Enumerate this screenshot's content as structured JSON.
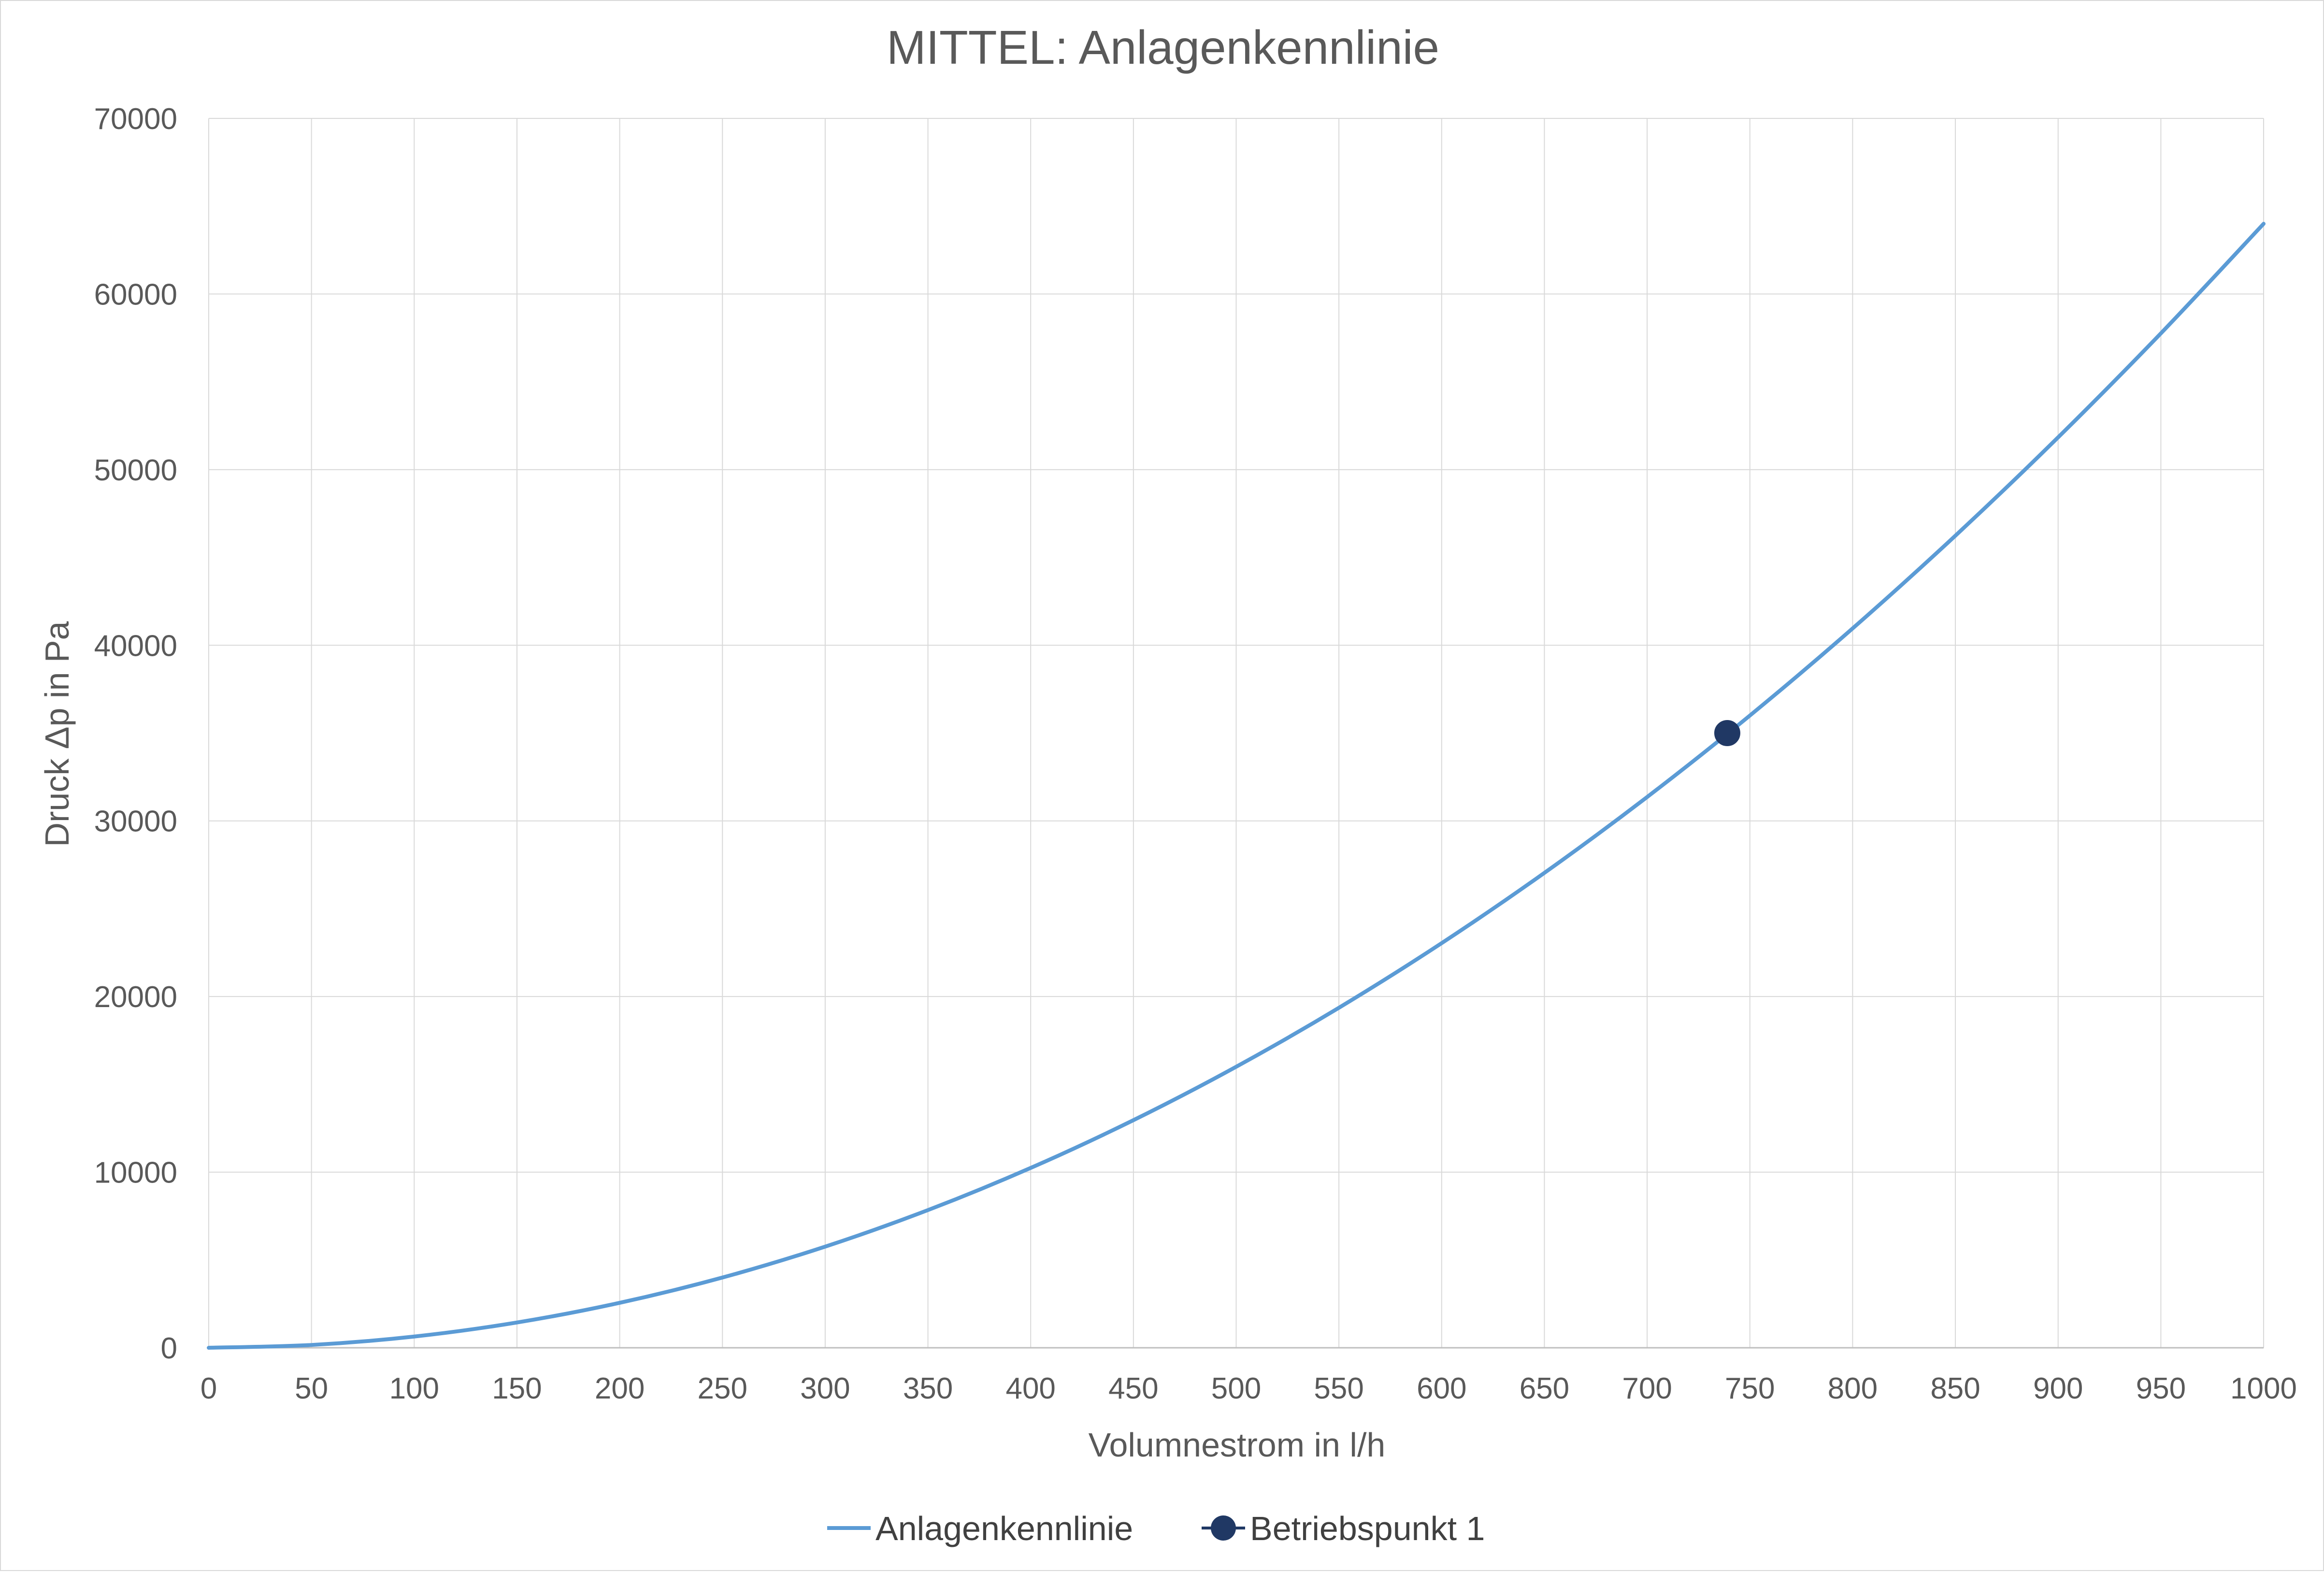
{
  "chart_data": {
    "type": "line",
    "title": "MITTEL: Anlagenkennlinie",
    "xlabel": "Volumnestrom in l/h",
    "ylabel": "Druck Δp in Pa",
    "xlim": [
      0,
      1000
    ],
    "ylim": [
      0,
      70000
    ],
    "x_ticks": [
      "0",
      "50",
      "100",
      "150",
      "200",
      "250",
      "300",
      "350",
      "400",
      "450",
      "500",
      "550",
      "600",
      "650",
      "700",
      "750",
      "800",
      "850",
      "900",
      "950",
      "1000"
    ],
    "y_ticks": [
      "0",
      "10000",
      "20000",
      "30000",
      "40000",
      "50000",
      "60000",
      "70000"
    ],
    "grid": true,
    "legend_position": "bottom",
    "series": [
      {
        "name": "Anlagenkennlinie",
        "type": "line",
        "color": "#5b9bd5",
        "x": [
          0,
          50,
          100,
          150,
          200,
          250,
          300,
          350,
          400,
          450,
          500,
          550,
          600,
          650,
          700,
          750,
          800,
          850,
          900,
          950,
          1000
        ],
        "y": [
          0,
          160,
          640,
          1440,
          2560,
          4000,
          5760,
          7840,
          10240,
          12960,
          16000,
          19360,
          23040,
          27040,
          31360,
          36000,
          40960,
          46240,
          51840,
          57760,
          64000
        ]
      },
      {
        "name": "Betriebspunkt 1",
        "type": "scatter",
        "color": "#203864",
        "x": [
          739
        ],
        "y": [
          35000
        ]
      }
    ]
  }
}
